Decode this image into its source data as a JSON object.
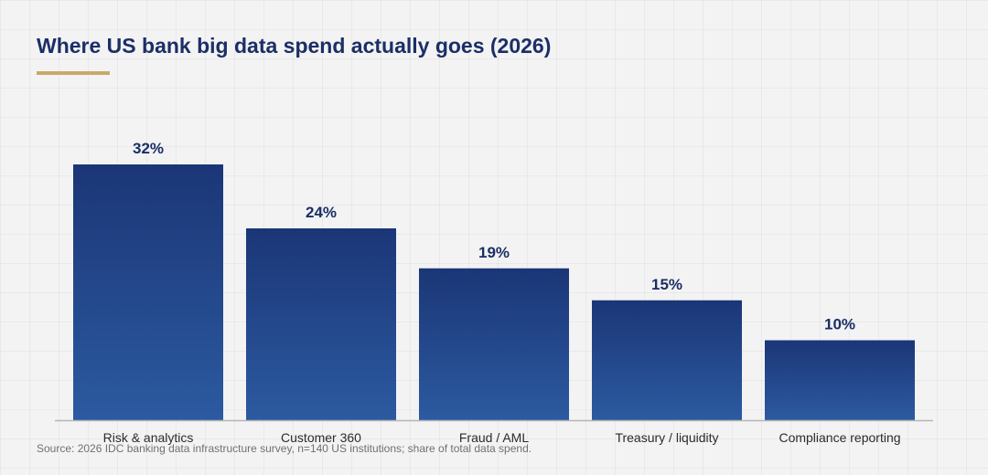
{
  "title": "Where US bank big data spend actually goes (2026)",
  "source": "Source: 2026 IDC banking data infrastructure survey, n=140 US institutions; share of total data spend.",
  "colors": {
    "title": "#1b2f66",
    "accent_underline": "#c8a96a",
    "bar_top": "#1b3677",
    "bar_bottom": "#2c5aa0",
    "axis": "#b5b5b5",
    "background": "#f3f3f4"
  },
  "chart_data": {
    "type": "bar",
    "title": "Where US bank big data spend actually goes (2026)",
    "xlabel": "",
    "ylabel": "",
    "categories": [
      "Risk & analytics",
      "Customer 360",
      "Fraud / AML",
      "Treasury / liquidity",
      "Compliance reporting"
    ],
    "values": [
      32,
      24,
      19,
      15,
      10
    ],
    "value_labels": [
      "32%",
      "24%",
      "19%",
      "15%",
      "10%"
    ],
    "unit": "%",
    "ylim": [
      0,
      32
    ],
    "grid": false,
    "legend": "none"
  }
}
